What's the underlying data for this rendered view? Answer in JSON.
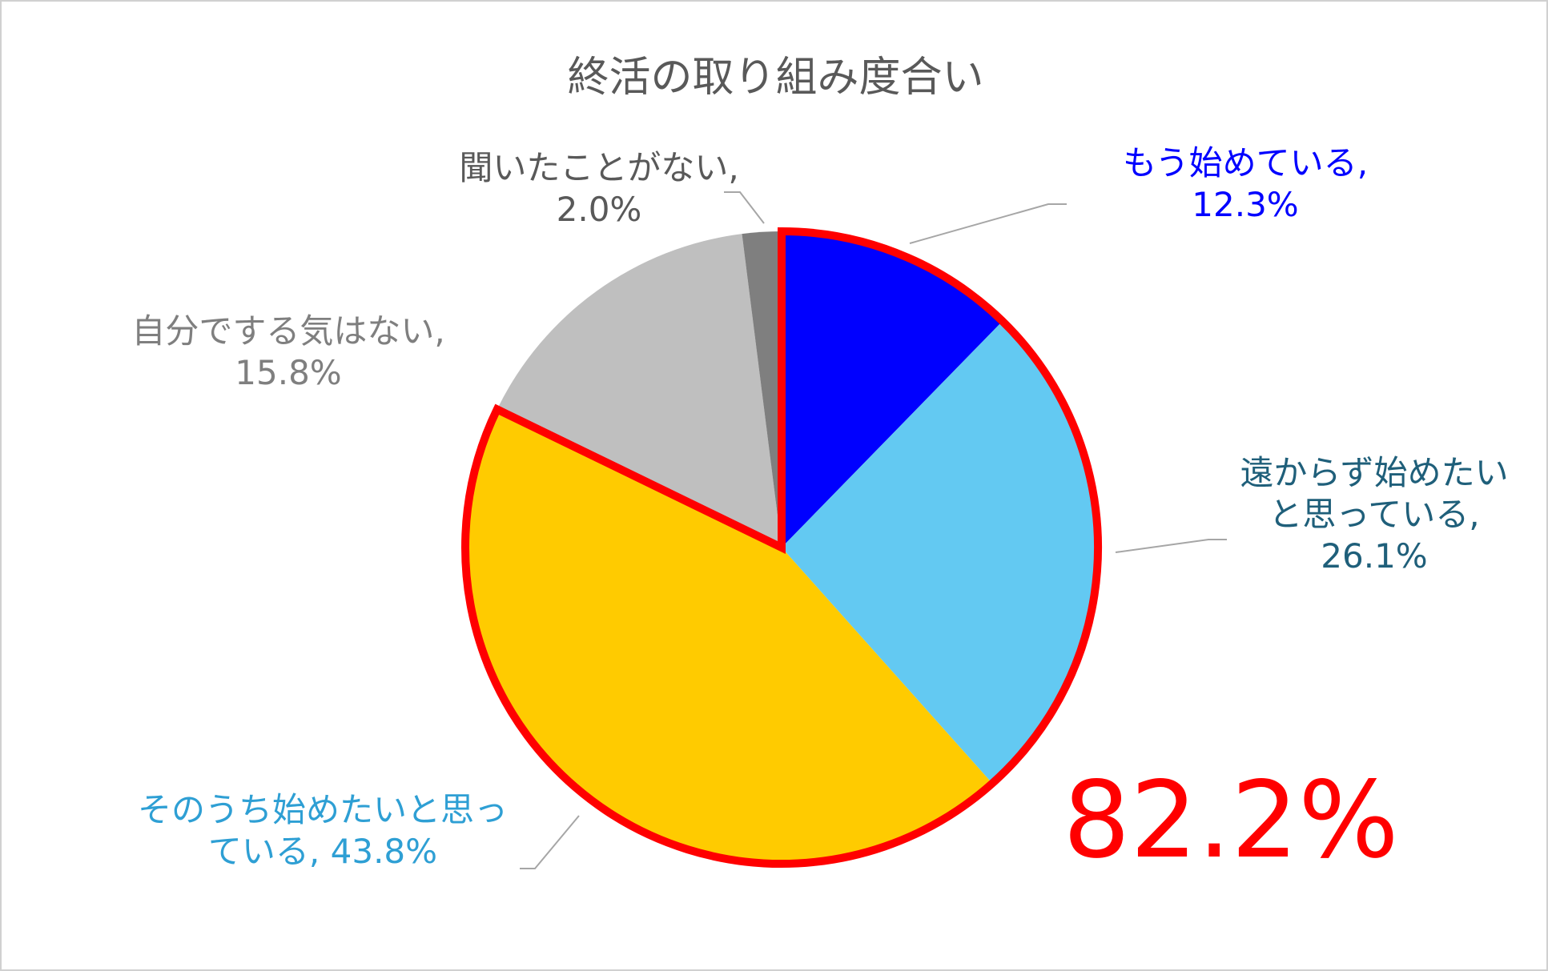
{
  "chart_data": {
    "type": "pie",
    "title": "終活の取り組み度合い",
    "categories": [
      "もう始めている",
      "遠からず始めたいと思っている",
      "そのうち始めたいと思っている",
      "自分でする気はない",
      "聞いたことがない"
    ],
    "values": [
      12.3,
      26.1,
      43.8,
      15.8,
      2.0
    ],
    "value_labels": [
      "12.3%",
      "26.1%",
      "43.8%",
      "15.8%",
      "2.0%"
    ],
    "separator": ",",
    "colors": [
      "#0000ff",
      "#63c9f2",
      "#ffcb00",
      "#bfbfbf",
      "#7f7f7f"
    ],
    "label_colors": [
      "#0000ff",
      "#1f5f7a",
      "#2e9fd4",
      "#7f7f7f",
      "#595959"
    ],
    "highlight": {
      "label": "82.2%",
      "value": 82.2,
      "color": "#ff0000"
    }
  }
}
